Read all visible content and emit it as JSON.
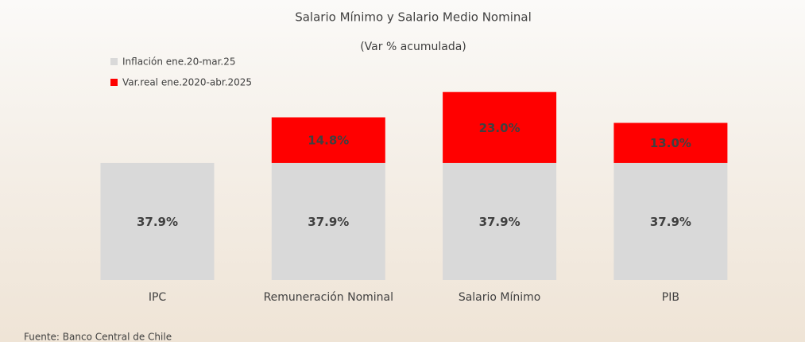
{
  "chart_data": {
    "type": "stacked-bar",
    "title": "Salario Mínimo y Salario Medio Nominal",
    "subtitle": "(Var % acumulada)",
    "categories": [
      "IPC",
      "Remuneración Nominal",
      "Salario Mínimo",
      "PIB"
    ],
    "series": [
      {
        "name": "Inflación ene.20-mar.25",
        "color": "#d9d9d9",
        "values": [
          37.9,
          37.9,
          37.9,
          37.9
        ],
        "value_labels": [
          "37.9%",
          "37.9%",
          "37.9%",
          "37.9%"
        ]
      },
      {
        "name": "Var.real ene.2020-abr.2025",
        "color": "#ff0000",
        "values": [
          null,
          14.8,
          23.0,
          13.0
        ],
        "value_labels": [
          null,
          "14.8%",
          "23.0%",
          "13.0%"
        ]
      }
    ],
    "source": "Fuente: Banco Central de Chile"
  }
}
